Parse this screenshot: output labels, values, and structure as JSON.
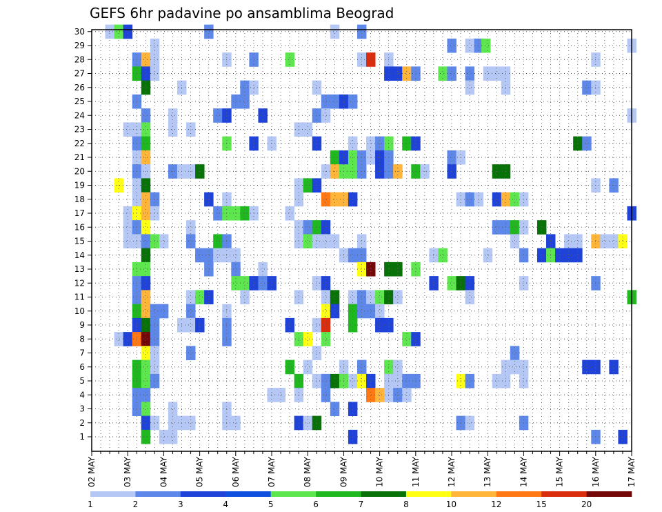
{
  "chart_data": {
    "type": "heatmap",
    "title": "GEFS 6hr padavine po ansamblima Beograd",
    "x_tick_labels": [
      "02 MAY",
      "03 MAY",
      "04 MAY",
      "05 MAY",
      "06 MAY",
      "07 MAY",
      "08 MAY",
      "09 MAY",
      "10 MAY",
      "11 MAY",
      "12 MAY",
      "13 MAY",
      "14 MAY",
      "15 MAY",
      "16 MAY",
      "17 MAY"
    ],
    "x_unit": "6-hour step (4 per day)",
    "y_tick_labels": [
      "1",
      "2",
      "3",
      "4",
      "5",
      "6",
      "7",
      "8",
      "9",
      "10",
      "11",
      "12",
      "13",
      "14",
      "15",
      "16",
      "17",
      "18",
      "19",
      "20",
      "21",
      "22",
      "23",
      "24",
      "25",
      "26",
      "27",
      "28",
      "29",
      "30"
    ],
    "ylim": [
      1,
      30
    ],
    "grid": true,
    "colorbar": {
      "labels": [
        "1",
        "2",
        "3",
        "4",
        "5",
        "6",
        "7",
        "8",
        "10",
        "12",
        "15",
        "20"
      ],
      "colors": [
        "#B4C7F5",
        "#5D87E8",
        "#1F43D8",
        "#0F4FE0",
        "#5EE64F",
        "#1FB81F",
        "#087208",
        "#FFFF14",
        "#FFB43A",
        "#FF7814",
        "#D92D0E",
        "#740808"
      ]
    },
    "cells": [
      [
        30,
        2.5,
        1
      ],
      [
        30,
        2.75,
        5
      ],
      [
        30,
        3,
        3
      ],
      [
        30,
        5.25,
        2
      ],
      [
        30,
        8.75,
        1
      ],
      [
        30,
        9.5,
        2
      ],
      [
        29,
        3.75,
        1
      ],
      [
        29,
        12,
        2
      ],
      [
        29,
        12.5,
        1
      ],
      [
        29,
        12.75,
        2
      ],
      [
        29,
        12.95,
        5
      ],
      [
        29,
        17,
        1
      ],
      [
        28,
        3.25,
        2
      ],
      [
        28,
        3.5,
        10
      ],
      [
        28,
        3.75,
        1
      ],
      [
        28,
        5.75,
        1
      ],
      [
        28,
        6.5,
        2
      ],
      [
        28,
        7.5,
        5
      ],
      [
        28,
        9.5,
        1
      ],
      [
        28,
        9.75,
        15
      ],
      [
        28,
        10.25,
        1
      ],
      [
        28,
        16,
        1
      ],
      [
        27,
        3.25,
        6
      ],
      [
        27,
        3.5,
        3
      ],
      [
        27,
        3.75,
        1
      ],
      [
        27,
        10.25,
        3
      ],
      [
        27,
        10.5,
        3
      ],
      [
        27,
        10.75,
        10
      ],
      [
        27,
        11,
        2
      ],
      [
        27,
        11.75,
        5
      ],
      [
        27,
        12,
        2
      ],
      [
        27,
        12.5,
        2
      ],
      [
        27,
        13,
        1
      ],
      [
        27,
        13.25,
        1
      ],
      [
        27,
        13.5,
        1
      ],
      [
        26,
        3.5,
        7
      ],
      [
        26,
        4.5,
        1
      ],
      [
        26,
        6.25,
        2
      ],
      [
        26,
        6.5,
        1
      ],
      [
        26,
        8.25,
        1
      ],
      [
        26,
        12.5,
        1
      ],
      [
        26,
        13.5,
        1
      ],
      [
        26,
        15.75,
        2
      ],
      [
        26,
        16,
        1
      ],
      [
        25,
        3.25,
        2
      ],
      [
        25,
        6,
        2
      ],
      [
        25,
        6.25,
        2
      ],
      [
        25,
        8.5,
        2
      ],
      [
        25,
        8.75,
        2
      ],
      [
        25,
        9,
        3
      ],
      [
        25,
        9.25,
        2
      ],
      [
        24,
        3.5,
        2
      ],
      [
        24,
        4.25,
        1
      ],
      [
        24,
        5.5,
        2
      ],
      [
        24,
        5.75,
        3
      ],
      [
        24,
        6.75,
        3
      ],
      [
        24,
        8.25,
        2
      ],
      [
        24,
        8.5,
        1
      ],
      [
        24,
        17,
        1
      ],
      [
        23,
        3,
        1
      ],
      [
        23,
        3.25,
        1
      ],
      [
        23,
        3.5,
        5
      ],
      [
        23,
        4.25,
        1
      ],
      [
        23,
        4.75,
        1
      ],
      [
        23,
        7.75,
        1
      ],
      [
        23,
        8,
        1
      ],
      [
        22,
        3.25,
        2
      ],
      [
        22,
        3.5,
        6
      ],
      [
        22,
        5.75,
        5
      ],
      [
        22,
        6.5,
        3
      ],
      [
        22,
        7,
        1
      ],
      [
        22,
        8.25,
        3
      ],
      [
        22,
        9.25,
        1
      ],
      [
        22,
        9.75,
        1
      ],
      [
        22,
        10,
        2
      ],
      [
        22,
        10.25,
        5
      ],
      [
        22,
        10.75,
        6
      ],
      [
        22,
        11,
        3
      ],
      [
        22,
        15.5,
        7
      ],
      [
        22,
        15.75,
        2
      ],
      [
        21,
        3.25,
        1
      ],
      [
        21,
        3.5,
        10
      ],
      [
        21,
        8.75,
        6
      ],
      [
        21,
        9,
        3
      ],
      [
        21,
        9.25,
        5
      ],
      [
        21,
        9.5,
        2
      ],
      [
        21,
        9.75,
        1
      ],
      [
        21,
        10,
        3
      ],
      [
        21,
        10.25,
        2
      ],
      [
        21,
        12,
        2
      ],
      [
        21,
        12.25,
        1
      ],
      [
        20,
        3.25,
        2
      ],
      [
        20,
        3.5,
        1
      ],
      [
        20,
        4.25,
        2
      ],
      [
        20,
        4.5,
        1
      ],
      [
        20,
        4.75,
        1
      ],
      [
        20,
        5,
        7
      ],
      [
        20,
        8.5,
        1
      ],
      [
        20,
        8.75,
        10
      ],
      [
        20,
        9,
        5
      ],
      [
        20,
        9.25,
        5
      ],
      [
        20,
        9.5,
        2
      ],
      [
        20,
        10,
        3
      ],
      [
        20,
        10.25,
        2
      ],
      [
        20,
        10.5,
        10
      ],
      [
        20,
        11,
        6
      ],
      [
        20,
        11.25,
        1
      ],
      [
        20,
        12,
        3
      ],
      [
        20,
        13.25,
        7
      ],
      [
        20,
        13.5,
        7
      ],
      [
        19,
        2.75,
        8
      ],
      [
        19,
        3.25,
        1
      ],
      [
        19,
        3.5,
        7
      ],
      [
        19,
        7.75,
        1
      ],
      [
        19,
        8,
        6
      ],
      [
        19,
        8.25,
        3
      ],
      [
        19,
        16,
        1
      ],
      [
        19,
        16.5,
        2
      ],
      [
        18,
        3.25,
        1
      ],
      [
        18,
        3.5,
        10
      ],
      [
        18,
        3.75,
        2
      ],
      [
        18,
        5.25,
        3
      ],
      [
        18,
        5.75,
        1
      ],
      [
        18,
        7.75,
        1
      ],
      [
        18,
        8.5,
        12
      ],
      [
        18,
        8.75,
        10
      ],
      [
        18,
        9,
        10
      ],
      [
        18,
        9.25,
        3
      ],
      [
        18,
        12.25,
        1
      ],
      [
        18,
        12.5,
        2
      ],
      [
        18,
        12.75,
        1
      ],
      [
        18,
        13.25,
        3
      ],
      [
        18,
        13.5,
        10
      ],
      [
        18,
        13.75,
        5
      ],
      [
        18,
        14,
        1
      ],
      [
        17,
        3,
        1
      ],
      [
        17,
        3.25,
        8
      ],
      [
        17,
        3.5,
        10
      ],
      [
        17,
        3.75,
        1
      ],
      [
        17,
        5.5,
        2
      ],
      [
        17,
        5.75,
        5
      ],
      [
        17,
        6,
        5
      ],
      [
        17,
        6.25,
        6
      ],
      [
        17,
        6.5,
        1
      ],
      [
        17,
        7.5,
        1
      ],
      [
        17,
        17,
        3
      ],
      [
        16,
        3,
        1
      ],
      [
        16,
        3.25,
        2
      ],
      [
        16,
        3.5,
        8
      ],
      [
        16,
        4.75,
        1
      ],
      [
        16,
        7.75,
        1
      ],
      [
        16,
        8,
        2
      ],
      [
        16,
        8.25,
        6
      ],
      [
        16,
        8.5,
        3
      ],
      [
        16,
        13.25,
        2
      ],
      [
        16,
        13.5,
        2
      ],
      [
        16,
        13.75,
        6
      ],
      [
        16,
        14,
        1
      ],
      [
        16,
        14.5,
        7
      ],
      [
        15,
        3,
        1
      ],
      [
        15,
        3.25,
        1
      ],
      [
        15,
        3.5,
        2
      ],
      [
        15,
        3.75,
        5
      ],
      [
        15,
        4,
        1
      ],
      [
        15,
        4.75,
        2
      ],
      [
        15,
        5.5,
        6
      ],
      [
        15,
        5.75,
        2
      ],
      [
        15,
        7.75,
        1
      ],
      [
        15,
        8,
        5
      ],
      [
        15,
        8.25,
        1
      ],
      [
        15,
        8.5,
        1
      ],
      [
        15,
        8.75,
        1
      ],
      [
        15,
        9.5,
        1
      ],
      [
        15,
        13.75,
        1
      ],
      [
        15,
        14.75,
        3
      ],
      [
        15,
        15.25,
        1
      ],
      [
        15,
        15.5,
        1
      ],
      [
        15,
        16,
        10
      ],
      [
        15,
        16.25,
        1
      ],
      [
        15,
        16.5,
        1
      ],
      [
        15,
        16.75,
        8
      ],
      [
        14,
        3.5,
        7
      ],
      [
        14,
        5,
        2
      ],
      [
        14,
        5.25,
        2
      ],
      [
        14,
        5.5,
        1
      ],
      [
        14,
        5.75,
        1
      ],
      [
        14,
        6,
        1
      ],
      [
        14,
        9,
        1
      ],
      [
        14,
        9.25,
        2
      ],
      [
        14,
        9.5,
        2
      ],
      [
        14,
        11.5,
        1
      ],
      [
        14,
        11.75,
        5
      ],
      [
        14,
        13,
        1
      ],
      [
        14,
        14,
        2
      ],
      [
        14,
        14.5,
        3
      ],
      [
        14,
        14.75,
        5
      ],
      [
        14,
        15,
        3
      ],
      [
        14,
        15.25,
        3
      ],
      [
        14,
        15.5,
        3
      ],
      [
        13,
        3.25,
        5
      ],
      [
        13,
        3.5,
        5
      ],
      [
        13,
        5.25,
        2
      ],
      [
        13,
        6,
        2
      ],
      [
        13,
        6.75,
        1
      ],
      [
        13,
        9.5,
        8
      ],
      [
        13,
        9.75,
        20
      ],
      [
        13,
        10.25,
        7
      ],
      [
        13,
        10.5,
        7
      ],
      [
        13,
        11,
        5
      ],
      [
        12,
        3.25,
        2
      ],
      [
        12,
        3.5,
        3
      ],
      [
        12,
        6,
        5
      ],
      [
        12,
        6.25,
        5
      ],
      [
        12,
        6.5,
        3
      ],
      [
        12,
        6.75,
        2
      ],
      [
        12,
        7,
        3
      ],
      [
        12,
        8.25,
        1
      ],
      [
        12,
        8.5,
        3
      ],
      [
        12,
        11.5,
        3
      ],
      [
        12,
        12,
        5
      ],
      [
        12,
        12.25,
        7
      ],
      [
        12,
        12.5,
        3
      ],
      [
        12,
        14,
        1
      ],
      [
        12,
        16,
        2
      ],
      [
        11,
        3.25,
        2
      ],
      [
        11,
        3.5,
        10
      ],
      [
        11,
        4.75,
        1
      ],
      [
        11,
        5,
        5
      ],
      [
        11,
        5.25,
        3
      ],
      [
        11,
        6.25,
        1
      ],
      [
        11,
        7.75,
        1
      ],
      [
        11,
        8.5,
        1
      ],
      [
        11,
        8.75,
        7
      ],
      [
        11,
        9.25,
        1
      ],
      [
        11,
        9.5,
        2
      ],
      [
        11,
        9.75,
        1
      ],
      [
        11,
        10,
        5
      ],
      [
        11,
        10.25,
        7
      ],
      [
        11,
        10.5,
        1
      ],
      [
        11,
        12.5,
        1
      ],
      [
        11,
        17,
        6
      ],
      [
        10,
        3.25,
        6
      ],
      [
        10,
        3.5,
        10
      ],
      [
        10,
        3.75,
        2
      ],
      [
        10,
        4,
        2
      ],
      [
        10,
        4.75,
        2
      ],
      [
        10,
        5.75,
        1
      ],
      [
        10,
        8.5,
        8
      ],
      [
        10,
        8.75,
        3
      ],
      [
        10,
        9.25,
        6
      ],
      [
        10,
        9.5,
        2
      ],
      [
        10,
        9.75,
        2
      ],
      [
        10,
        10,
        1
      ],
      [
        9,
        3.25,
        3
      ],
      [
        9,
        3.5,
        7
      ],
      [
        9,
        3.75,
        2
      ],
      [
        9,
        4.5,
        1
      ],
      [
        9,
        4.75,
        1
      ],
      [
        9,
        5,
        3
      ],
      [
        9,
        5.75,
        2
      ],
      [
        9,
        7.5,
        3
      ],
      [
        9,
        8.25,
        1
      ],
      [
        9,
        8.5,
        15
      ],
      [
        9,
        9.25,
        6
      ],
      [
        9,
        10,
        3
      ],
      [
        9,
        10.25,
        3
      ],
      [
        8,
        2.75,
        1
      ],
      [
        8,
        3,
        3
      ],
      [
        8,
        3.25,
        12
      ],
      [
        8,
        3.5,
        20
      ],
      [
        8,
        3.75,
        2
      ],
      [
        8,
        5.75,
        2
      ],
      [
        8,
        7.75,
        5
      ],
      [
        8,
        8,
        8
      ],
      [
        8,
        8.5,
        5
      ],
      [
        8,
        10.75,
        5
      ],
      [
        8,
        11,
        3
      ],
      [
        7,
        3.5,
        8
      ],
      [
        7,
        3.75,
        1
      ],
      [
        7,
        4.75,
        2
      ],
      [
        7,
        8.25,
        1
      ],
      [
        7,
        13.75,
        2
      ],
      [
        6,
        3.25,
        6
      ],
      [
        6,
        3.5,
        5
      ],
      [
        6,
        3.75,
        1
      ],
      [
        6,
        7.5,
        6
      ],
      [
        6,
        8,
        1
      ],
      [
        6,
        9,
        1
      ],
      [
        6,
        9.5,
        2
      ],
      [
        6,
        10.25,
        5
      ],
      [
        6,
        10.5,
        1
      ],
      [
        6,
        13.5,
        1
      ],
      [
        6,
        13.75,
        1
      ],
      [
        6,
        14,
        1
      ],
      [
        6,
        15.75,
        3
      ],
      [
        6,
        16,
        3
      ],
      [
        6,
        16.5,
        3
      ],
      [
        5,
        3.25,
        6
      ],
      [
        5,
        3.5,
        5
      ],
      [
        5,
        3.75,
        2
      ],
      [
        5,
        7.75,
        6
      ],
      [
        5,
        8.25,
        1
      ],
      [
        5,
        8.5,
        2
      ],
      [
        5,
        8.75,
        7
      ],
      [
        5,
        9,
        5
      ],
      [
        5,
        9.25,
        1
      ],
      [
        5,
        9.5,
        8
      ],
      [
        5,
        9.75,
        3
      ],
      [
        5,
        10.25,
        1
      ],
      [
        5,
        10.5,
        1
      ],
      [
        5,
        10.75,
        2
      ],
      [
        5,
        11,
        2
      ],
      [
        5,
        12.25,
        8
      ],
      [
        5,
        12.5,
        2
      ],
      [
        5,
        13.25,
        1
      ],
      [
        5,
        13.5,
        1
      ],
      [
        5,
        14,
        1
      ],
      [
        4,
        3.25,
        2
      ],
      [
        4,
        3.5,
        2
      ],
      [
        4,
        7,
        1
      ],
      [
        4,
        7.25,
        1
      ],
      [
        4,
        7.75,
        1
      ],
      [
        4,
        8.5,
        2
      ],
      [
        4,
        9.75,
        12
      ],
      [
        4,
        10,
        10
      ],
      [
        4,
        10.25,
        1
      ],
      [
        4,
        10.5,
        2
      ],
      [
        4,
        10.75,
        1
      ],
      [
        3,
        3.25,
        2
      ],
      [
        3,
        3.5,
        5
      ],
      [
        3,
        4.25,
        1
      ],
      [
        3,
        5.75,
        1
      ],
      [
        3,
        8.75,
        2
      ],
      [
        3,
        9.25,
        3
      ],
      [
        2,
        3.5,
        3
      ],
      [
        2,
        3.75,
        1
      ],
      [
        2,
        4.25,
        1
      ],
      [
        2,
        4.5,
        1
      ],
      [
        2,
        4.75,
        1
      ],
      [
        2,
        5.75,
        1
      ],
      [
        2,
        6,
        1
      ],
      [
        2,
        7.75,
        3
      ],
      [
        2,
        8,
        1
      ],
      [
        2,
        8.25,
        7
      ],
      [
        2,
        12.25,
        2
      ],
      [
        2,
        12.5,
        1
      ],
      [
        2,
        14,
        2
      ],
      [
        1,
        3.5,
        6
      ],
      [
        1,
        4,
        1
      ],
      [
        1,
        4.25,
        1
      ],
      [
        1,
        9.25,
        3
      ],
      [
        1,
        16,
        2
      ],
      [
        1,
        16.75,
        3
      ]
    ]
  }
}
